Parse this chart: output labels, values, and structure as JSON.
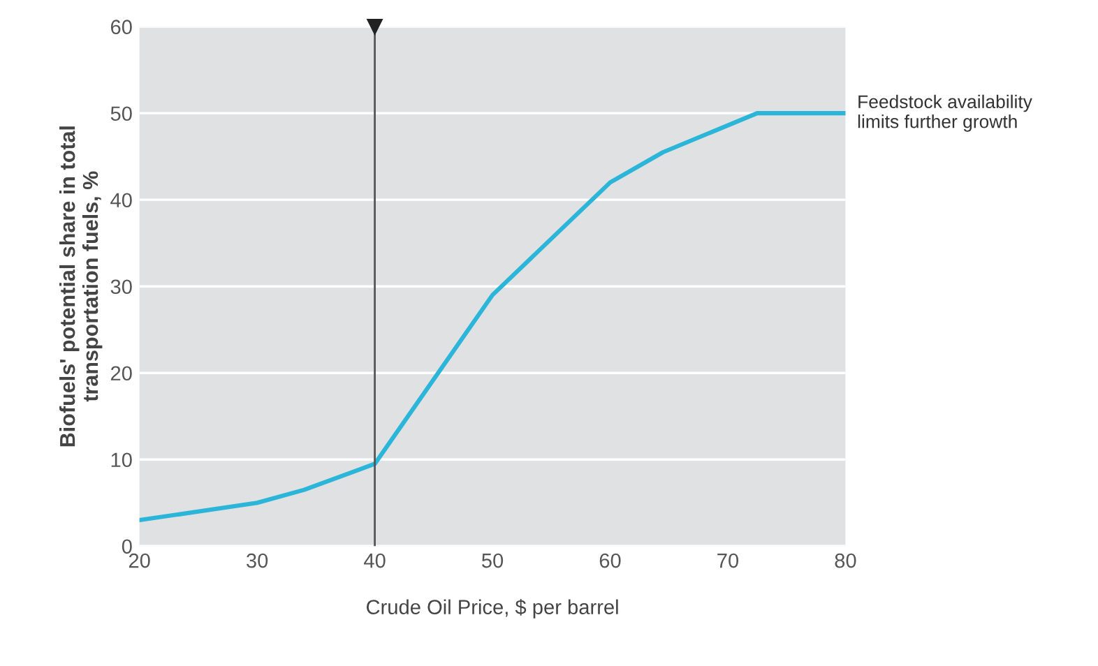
{
  "chart_data": {
    "type": "line",
    "xlabel": "Crude Oil Price, $ per barrel",
    "ylabel": "Biofuels' potential share in total\ntransportation fuels, %",
    "x": [
      20,
      30,
      34,
      40,
      50,
      60,
      64.5,
      72.5,
      80
    ],
    "series": [
      {
        "color": "#2bb5d8",
        "values": [
          3,
          5,
          6.5,
          9.5,
          29,
          42,
          45.5,
          50,
          50
        ]
      }
    ],
    "xlim": [
      20,
      80
    ],
    "xticks": [
      20,
      30,
      40,
      50,
      60,
      70,
      80
    ],
    "ylim": [
      0,
      60
    ],
    "yticks": [
      0,
      10,
      20,
      30,
      40,
      50,
      60
    ],
    "grid": "y",
    "ref_lines": [
      {
        "axis": "x",
        "value": 40,
        "color": "#555555"
      }
    ],
    "annotations": [
      {
        "text": "Feedstock availability\nlimits further growth",
        "x": 80,
        "y": 50
      }
    ]
  }
}
